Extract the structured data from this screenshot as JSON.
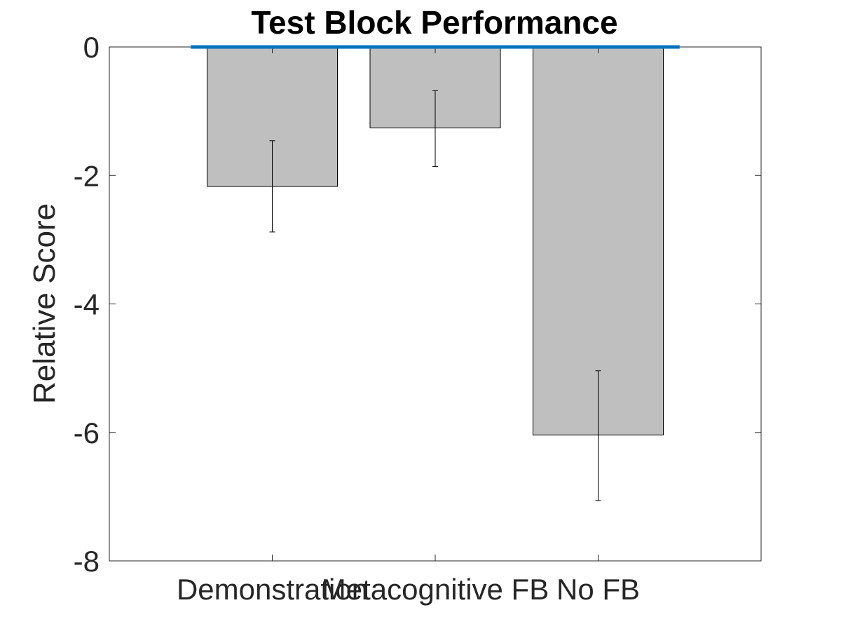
{
  "chart_data": {
    "type": "bar",
    "title": "Test Block Performance",
    "xlabel": "",
    "ylabel": "Relative Score",
    "categories": [
      "Demonstration",
      "Metacognitive FB",
      "No FB"
    ],
    "values": [
      -2.17,
      -1.26,
      -6.04
    ],
    "error_low": [
      -2.88,
      -1.86,
      -7.06
    ],
    "error_high": [
      -1.46,
      -0.68,
      -5.04
    ],
    "ylim": [
      -8,
      0
    ],
    "yticks": [
      0,
      -2,
      -4,
      -6,
      -8
    ],
    "ytick_labels": [
      "0",
      "-2",
      "-4",
      "-6",
      "-8"
    ],
    "reference_line": {
      "y": 0,
      "color": "#0072BD"
    },
    "bar_color": "#BFBFBF",
    "bar_edge_color": "#000000",
    "grid": false,
    "legend": "none"
  }
}
